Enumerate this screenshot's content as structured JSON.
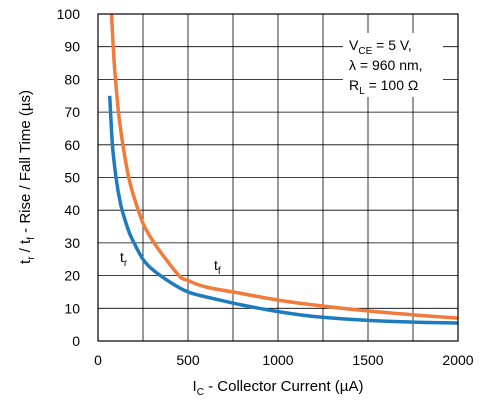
{
  "chart_data": {
    "type": "line",
    "xlabel": {
      "main": "I",
      "sub": "C",
      "rest": " - Collector Current (µA)"
    },
    "ylabel": {
      "a": "t",
      "a_sub": "r",
      "b": " / t",
      "b_sub": "f",
      "rest": " - Rise / Fall Time (µs)"
    },
    "xlim": [
      0,
      2000
    ],
    "ylim": [
      0,
      100
    ],
    "xticks": [
      0,
      500,
      1000,
      1500,
      2000
    ],
    "yticks": [
      0,
      10,
      20,
      30,
      40,
      50,
      60,
      70,
      80,
      90,
      100
    ],
    "grid": true,
    "conditions": [
      {
        "main": "V",
        "sub": "CE",
        "rest": " = 5 V,"
      },
      {
        "main": "λ = 960 nm,",
        "sub": "",
        "rest": ""
      },
      {
        "main": "R",
        "sub": "L",
        "rest": " = 100 Ω"
      }
    ],
    "series": [
      {
        "name": "t",
        "name_sub": "r",
        "color": "#1f7bc0",
        "x": [
          65,
          80,
          100,
          125,
          150,
          175,
          200,
          250,
          300,
          400,
          500,
          600,
          800,
          1000,
          1200,
          1500,
          1800,
          2000
        ],
        "y": [
          75,
          60,
          50,
          42,
          37,
          33,
          30,
          25,
          22,
          18,
          15,
          13.5,
          11,
          9,
          7.5,
          6.3,
          5.7,
          5.5
        ]
      },
      {
        "name": "t",
        "name_sub": "f",
        "color": "#f07b3a",
        "x": [
          75,
          90,
          110,
          125,
          150,
          175,
          200,
          250,
          300,
          350,
          450,
          500,
          600,
          800,
          1000,
          1200,
          1500,
          1800,
          2000
        ],
        "y": [
          100,
          85,
          72,
          65,
          56,
          49,
          44,
          36,
          31,
          27,
          20,
          18.5,
          16.5,
          14.5,
          12.5,
          11,
          9.2,
          7.8,
          7
        ]
      }
    ]
  }
}
